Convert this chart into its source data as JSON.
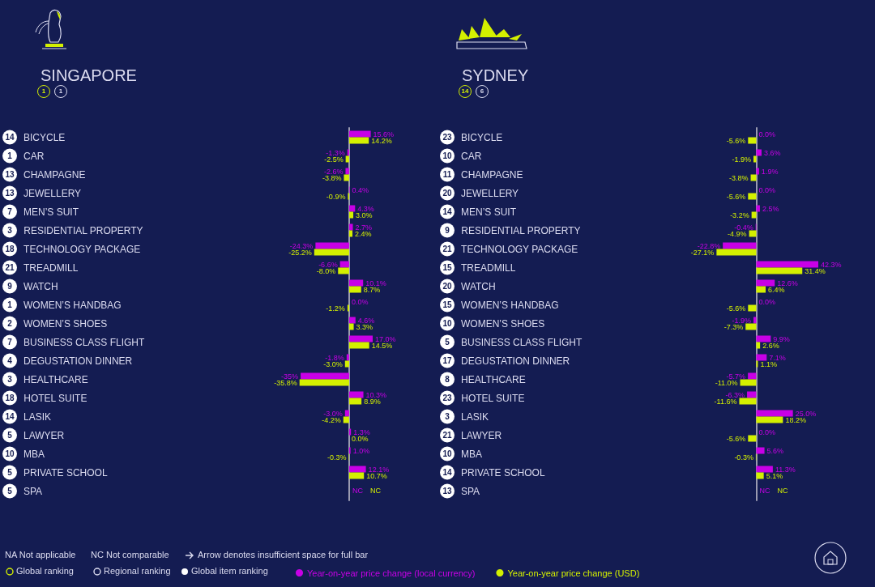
{
  "chart_data": [
    {
      "type": "bar",
      "orientation": "horizontal",
      "title": "SINGAPORE",
      "tick_labels": "y",
      "legend": "bottom",
      "grid": false,
      "categories": [
        "BICYCLE",
        "CAR",
        "CHAMPAGNE",
        "JEWELLERY",
        "MEN’S SUIT",
        "RESIDENTIAL PROPERTY",
        "TECHNOLOGY PACKAGE",
        "TREADMILL",
        "WATCH",
        "WOMEN’S HANDBAG",
        "WOMEN’S SHOES",
        "BUSINESS CLASS FLIGHT",
        "DEGUSTATION DINNER",
        "HEALTHCARE",
        "HOTEL SUITE",
        "LASIK",
        "LAWYER",
        "MBA",
        "PRIVATE SCHOOL",
        "SPA"
      ],
      "series": [
        {
          "name": "Year-on-year price change (local currency)",
          "color": "#c800e6",
          "values": [
            15.6,
            -1.3,
            -2.6,
            0.4,
            4.3,
            2.7,
            -24.3,
            -6.6,
            10.1,
            0.0,
            4.6,
            17.0,
            -1.8,
            -35,
            10.3,
            -3.0,
            1.3,
            1.0,
            12.1,
            null
          ],
          "value_labels": [
            "15.6%",
            "-1.3%",
            "-2.6%",
            "0.4%",
            "4.3%",
            "2.7%",
            "-24.3%",
            "-6.6%",
            "10.1%",
            "0.0%",
            "4.6%",
            "17.0%",
            "-1.8%",
            "-35%",
            "10.3%",
            "-3.0%",
            "1.3%",
            "1.0%",
            "12.1%",
            "NC"
          ]
        },
        {
          "name": "Year-on-year price change (USD)",
          "color": "#d4f000",
          "values": [
            14.2,
            -2.5,
            -3.8,
            -0.9,
            3.0,
            2.4,
            -25.2,
            -8.0,
            8.7,
            -1.2,
            3.3,
            14.5,
            -3.0,
            -35.8,
            8.9,
            -4.2,
            0.0,
            -0.3,
            10.7,
            null
          ],
          "value_labels": [
            "14.2%",
            "-2.5%",
            "-3.8%",
            "-0.9%",
            "3.0%",
            "2.4%",
            "-25.2%",
            "-8.0%",
            "8.7%",
            "-1.2%",
            "3.3%",
            "14.5%",
            "-3.0%",
            "-35.8%",
            "8.9%",
            "-4.2%",
            "0.0%",
            "-0.3%",
            "10.7%",
            "NC"
          ]
        }
      ],
      "annotations": [
        "1",
        "1",
        "14",
        "1",
        "13",
        "13",
        "7",
        "3",
        "18",
        "21",
        "9",
        "1",
        "2",
        "7",
        "4",
        "3",
        "18",
        "14",
        "5",
        "10",
        "5",
        "5",
        "NA  Not applicable",
        "NC  Not comparable",
        "Arrow denotes insufficient space for full bar",
        "Global ranking",
        "Regional ranking",
        "Global item ranking"
      ]
    },
    {
      "type": "bar",
      "orientation": "horizontal",
      "title": "SYDNEY",
      "tick_labels": "y",
      "grid": false,
      "categories": [
        "BICYCLE",
        "CAR",
        "CHAMPAGNE",
        "JEWELLERY",
        "MEN’S SUIT",
        "RESIDENTIAL PROPERTY",
        "TECHNOLOGY PACKAGE",
        "TREADMILL",
        "WATCH",
        "WOMEN’S HANDBAG",
        "WOMEN’S SHOES",
        "BUSINESS CLASS FLIGHT",
        "DEGUSTATION DINNER",
        "HEALTHCARE",
        "HOTEL SUITE",
        "LASIK",
        "LAWYER",
        "MBA",
        "PRIVATE SCHOOL",
        "SPA"
      ],
      "series": [
        {
          "color": "#c800e6",
          "values": [
            0.0,
            3.6,
            1.9,
            0.0,
            2.5,
            -0.4,
            -22.8,
            42.3,
            12.6,
            0.0,
            -1.9,
            9.9,
            7.1,
            -5.7,
            -6.3,
            25.0,
            0.0,
            5.6,
            11.3,
            null
          ],
          "value_labels": [
            "0.0%",
            "3.6%",
            "1.9%",
            "0.0%",
            "2.5%",
            "-0.4%",
            "-22.8%",
            "42.3%",
            "12.6%",
            "0.0%",
            "-1.9%",
            "9.9%",
            "7.1%",
            "-5.7%",
            "-6.3%",
            "25.0%",
            "0.0%",
            "5.6%",
            "11.3%",
            "NC"
          ]
        },
        {
          "color": "#d4f000",
          "values": [
            -5.6,
            -1.9,
            -3.8,
            -5.6,
            -3.2,
            -4.9,
            -27.1,
            31.4,
            6.4,
            -5.6,
            -7.3,
            2.6,
            1.1,
            -11.0,
            -11.6,
            18.2,
            -5.6,
            -0.3,
            5.1,
            null
          ],
          "value_labels": [
            "-5.6%",
            "-1.9%",
            "-3.8%",
            "-5.6%",
            "-3.2%",
            "-4.9%",
            "-27.1%",
            "31.4%",
            "6.4%",
            "-5.6%",
            "-7.3%",
            "2.6%",
            "1.1%",
            "-11.0%",
            "-11.6%",
            "18.2%",
            "-5.6%",
            "-0.3%",
            "5.1%",
            "NC"
          ]
        }
      ],
      "annotations": [
        "14",
        "6",
        "23",
        "10",
        "11",
        "20",
        "14",
        "9",
        "21",
        "15",
        "20",
        "15",
        "10",
        "5",
        "17",
        "8",
        "23",
        "3",
        "21",
        "10",
        "14",
        "13"
      ]
    }
  ]
}
